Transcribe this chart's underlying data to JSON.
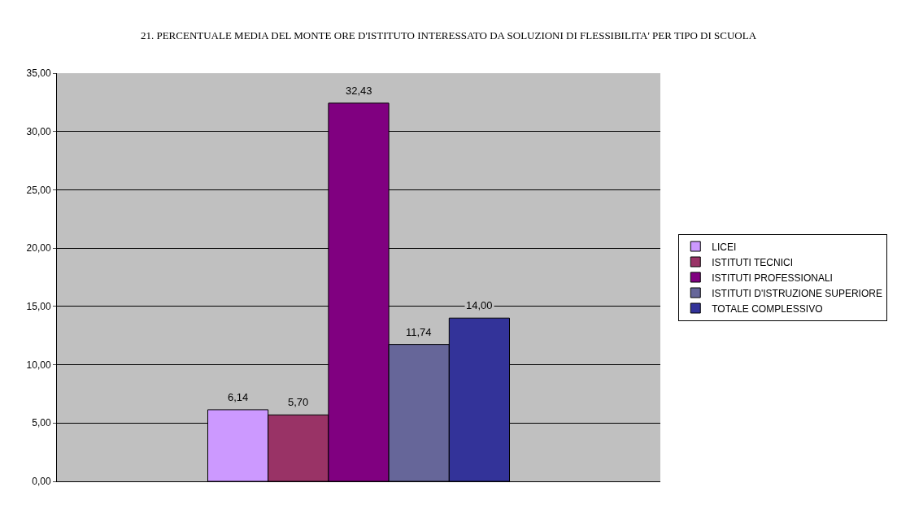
{
  "chart_data": {
    "type": "bar",
    "title": "21. PERCENTUALE MEDIA DEL MONTE ORE D'ISTITUTO INTERESSATO DA SOLUZIONI DI FLESSIBILITA' PER TIPO DI SCUOLA",
    "categories": [
      null
    ],
    "series": [
      {
        "name": "LICEI",
        "color": "#cc99ff",
        "values": [
          6.14
        ],
        "value_labels": [
          "6,14"
        ]
      },
      {
        "name": "ISTITUTI TECNICI",
        "color": "#993366",
        "values": [
          5.7
        ],
        "value_labels": [
          "5,70"
        ]
      },
      {
        "name": "ISTITUTI PROFESSIONALI",
        "color": "#800080",
        "values": [
          32.43
        ],
        "value_labels": [
          "32,43"
        ]
      },
      {
        "name": "ISTITUTI D'ISTRUZIONE SUPERIORE",
        "color": "#666699",
        "values": [
          11.74
        ],
        "value_labels": [
          "11,74"
        ]
      },
      {
        "name": "TOTALE COMPLESSIVO",
        "color": "#333399",
        "values": [
          14.0
        ],
        "value_labels": [
          "14,00"
        ]
      }
    ],
    "ylim": [
      0,
      35
    ],
    "yticks": [
      {
        "value": 0,
        "label": "0,00"
      },
      {
        "value": 5,
        "label": "5,00"
      },
      {
        "value": 10,
        "label": "10,00"
      },
      {
        "value": 15,
        "label": "15,00"
      },
      {
        "value": 20,
        "label": "20,00"
      },
      {
        "value": 25,
        "label": "25,00"
      },
      {
        "value": 30,
        "label": "30,00"
      },
      {
        "value": 35,
        "label": "35,00"
      }
    ],
    "grid": "y",
    "legend": "right"
  }
}
